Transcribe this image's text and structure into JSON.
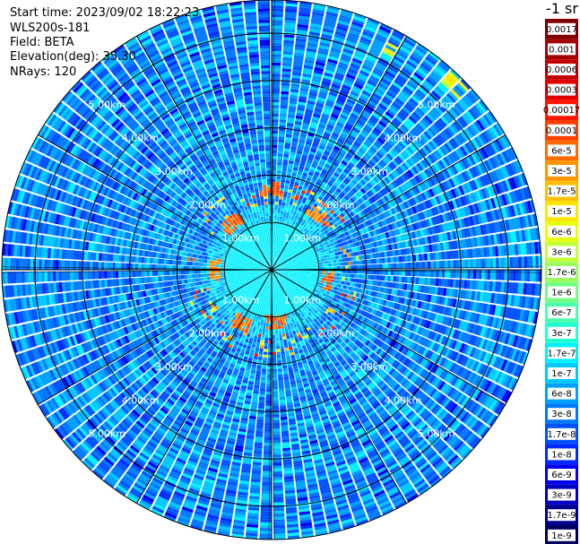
{
  "header": {
    "start_time": "Start time: 2023/09/02 18:22:23",
    "device": "WLS200s-181",
    "field": "Field: BETA",
    "elevation": "Elevation(deg): 35.30",
    "nrays": "NRays: 120"
  },
  "colorbar": {
    "unit_label": "-1 sr",
    "levels": [
      {
        "label": "0.0017",
        "color": "#7f0000"
      },
      {
        "label": "0.001",
        "color": "#a50000"
      },
      {
        "label": "0.0006",
        "color": "#c40000"
      },
      {
        "label": "0.0003",
        "color": "#e00000"
      },
      {
        "label": "0.00017",
        "color": "#ff1500"
      },
      {
        "label": "0.0001",
        "color": "#ff3f00"
      },
      {
        "label": "6e-5",
        "color": "#ff6a00"
      },
      {
        "label": "3e-5",
        "color": "#ff9500"
      },
      {
        "label": "1.7e-5",
        "color": "#ffbf00"
      },
      {
        "label": "1e-5",
        "color": "#ffe600"
      },
      {
        "label": "6e-6",
        "color": "#e8ff0f"
      },
      {
        "label": "3e-6",
        "color": "#c1ff36"
      },
      {
        "label": "1.7e-6",
        "color": "#9aff5d"
      },
      {
        "label": "1e-6",
        "color": "#73ff84"
      },
      {
        "label": "6e-7",
        "color": "#4dffaa"
      },
      {
        "label": "3e-7",
        "color": "#26ffd1"
      },
      {
        "label": "1.7e-7",
        "color": "#00f0ff"
      },
      {
        "label": "1e-7",
        "color": "#00c8ff"
      },
      {
        "label": "6e-8",
        "color": "#00a0ff"
      },
      {
        "label": "3e-8",
        "color": "#0078ff"
      },
      {
        "label": "1.7e-8",
        "color": "#0050ff"
      },
      {
        "label": "1e-8",
        "color": "#0028ff"
      },
      {
        "label": "6e-9",
        "color": "#0000f0"
      },
      {
        "label": "3e-9",
        "color": "#0000c0"
      },
      {
        "label": "1.7e-9",
        "color": "#00008f"
      },
      {
        "label": "1e-9",
        "color": "#000060"
      }
    ]
  },
  "chart_data": {
    "type": "heatmap",
    "projection": "polar (PPI scan)",
    "field": "BETA",
    "n_rays": 120,
    "ring_labels": [
      "1.00km",
      "2.00km",
      "3.00km",
      "4.00km",
      "5.00km"
    ],
    "ring_ranges_km": [
      1,
      2,
      3,
      4,
      5
    ],
    "max_range_km": 5.7,
    "azimuth_lines_deg": [
      0,
      30,
      60,
      90,
      120,
      150,
      180,
      210,
      240,
      270,
      300,
      330
    ],
    "color_scale": "log",
    "value_range": [
      1e-09,
      0.0017
    ],
    "dominant_values": {
      "near_field_within_1km": "1.7e-7 to 3e-7",
      "far_field_beyond_1.5km": "1e-8 to 1.7e-7",
      "ring_echo_1.4_to_1.8km": "3e-6 to 0.0003"
    },
    "hotspots": [
      {
        "azimuth_deg": 0,
        "range_km": 1.7,
        "value": "1e-4"
      },
      {
        "azimuth_deg": 40,
        "range_km": 1.5,
        "value": "6e-5"
      },
      {
        "azimuth_deg": 100,
        "range_km": 1.2,
        "value": "1e-4"
      },
      {
        "azimuth_deg": 175,
        "range_km": 1.1,
        "value": "1e-4"
      },
      {
        "azimuth_deg": 210,
        "range_km": 1.3,
        "value": "1e-4"
      },
      {
        "azimuth_deg": 270,
        "range_km": 1.2,
        "value": "6e-5"
      },
      {
        "azimuth_deg": 320,
        "range_km": 1.3,
        "value": "1e-4"
      },
      {
        "azimuth_deg": 28,
        "range_km": 5.3,
        "value": "1e-5"
      },
      {
        "azimuth_deg": 45,
        "range_km": 5.5,
        "value": "1e-5"
      }
    ]
  }
}
